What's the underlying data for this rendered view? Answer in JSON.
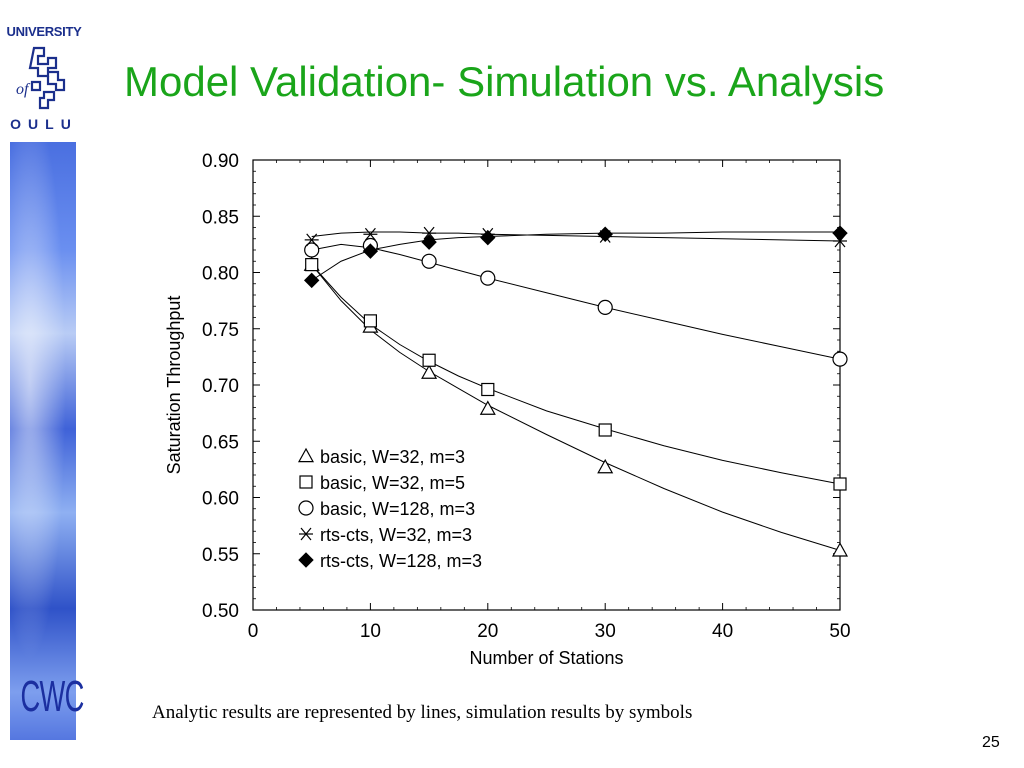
{
  "slide": {
    "title": "Model Validation- Simulation vs. Analysis",
    "caption": "Analytic results are represented by lines, simulation results by symbols",
    "page_number": "25"
  },
  "logo": {
    "top_text": "UNIVERSITY",
    "of_text": "of",
    "bottom_text": "OULU",
    "color": "#1b2f8c"
  },
  "footer_logo": {
    "text": "CWC",
    "color": "#1b2fa0"
  },
  "colors": {
    "title": "#1aa51a",
    "accent_band": "#4a6fe0"
  },
  "chart_data": {
    "type": "line",
    "xlabel": "Number of Stations",
    "ylabel": "Saturation Throughput",
    "xlim": [
      0,
      50
    ],
    "ylim": [
      0.5,
      0.9
    ],
    "x_ticks": [
      0,
      10,
      20,
      30,
      40,
      50
    ],
    "x_tick_labels": [
      "0",
      "10",
      "20",
      "30",
      "40",
      "50"
    ],
    "y_ticks": [
      0.5,
      0.55,
      0.6,
      0.65,
      0.7,
      0.75,
      0.8,
      0.85,
      0.9
    ],
    "y_tick_labels": [
      "0.50",
      "0.55",
      "0.60",
      "0.65",
      "0.70",
      "0.75",
      "0.80",
      "0.85",
      "0.90"
    ],
    "grid": false,
    "legend_position": "bottom-left",
    "series": [
      {
        "name": "basic, W=32, m=3",
        "marker": "triangle",
        "x": [
          5,
          10,
          15,
          20,
          30,
          50
        ],
        "y": [
          0.807,
          0.752,
          0.711,
          0.679,
          0.627,
          0.553
        ],
        "analysis_x": [
          5,
          7.5,
          10,
          12.5,
          15,
          17.5,
          20,
          25,
          30,
          35,
          40,
          45,
          50
        ],
        "analysis_y": [
          0.807,
          0.775,
          0.749,
          0.729,
          0.712,
          0.697,
          0.682,
          0.656,
          0.631,
          0.608,
          0.587,
          0.569,
          0.553
        ]
      },
      {
        "name": "basic, W=32, m=5",
        "marker": "square",
        "x": [
          5,
          10,
          15,
          20,
          30,
          50
        ],
        "y": [
          0.807,
          0.757,
          0.722,
          0.696,
          0.66,
          0.612
        ],
        "analysis_x": [
          5,
          7.5,
          10,
          12.5,
          15,
          17.5,
          20,
          25,
          30,
          35,
          40,
          45,
          50
        ],
        "analysis_y": [
          0.807,
          0.778,
          0.754,
          0.736,
          0.721,
          0.708,
          0.697,
          0.677,
          0.661,
          0.646,
          0.633,
          0.622,
          0.612
        ]
      },
      {
        "name": "basic, W=128, m=3",
        "marker": "circle",
        "x": [
          5,
          10,
          15,
          20,
          30,
          50
        ],
        "y": [
          0.82,
          0.824,
          0.81,
          0.795,
          0.769,
          0.723
        ],
        "analysis_x": [
          5,
          7.5,
          10,
          12.5,
          15,
          17.5,
          20,
          25,
          30,
          35,
          40,
          45,
          50
        ],
        "analysis_y": [
          0.82,
          0.825,
          0.822,
          0.816,
          0.809,
          0.802,
          0.795,
          0.782,
          0.769,
          0.757,
          0.745,
          0.734,
          0.723
        ]
      },
      {
        "name": "rts-cts, W=32, m=3",
        "marker": "asterisk",
        "x": [
          5,
          10,
          15,
          20,
          30,
          50
        ],
        "y": [
          0.829,
          0.834,
          0.835,
          0.834,
          0.832,
          0.828
        ],
        "analysis_x": [
          5,
          7.5,
          10,
          12.5,
          15,
          17.5,
          20,
          25,
          30,
          35,
          40,
          45,
          50
        ],
        "analysis_y": [
          0.832,
          0.835,
          0.836,
          0.836,
          0.835,
          0.835,
          0.834,
          0.833,
          0.832,
          0.831,
          0.83,
          0.829,
          0.828
        ]
      },
      {
        "name": "rts-cts, W=128, m=3",
        "marker": "diamond",
        "x": [
          5,
          10,
          15,
          20,
          30,
          50
        ],
        "y": [
          0.793,
          0.819,
          0.827,
          0.831,
          0.834,
          0.835
        ],
        "analysis_x": [
          5,
          7.5,
          10,
          12.5,
          15,
          17.5,
          20,
          25,
          30,
          35,
          40,
          45,
          50
        ],
        "analysis_y": [
          0.793,
          0.81,
          0.82,
          0.825,
          0.829,
          0.831,
          0.832,
          0.834,
          0.835,
          0.835,
          0.836,
          0.836,
          0.836
        ]
      }
    ]
  }
}
